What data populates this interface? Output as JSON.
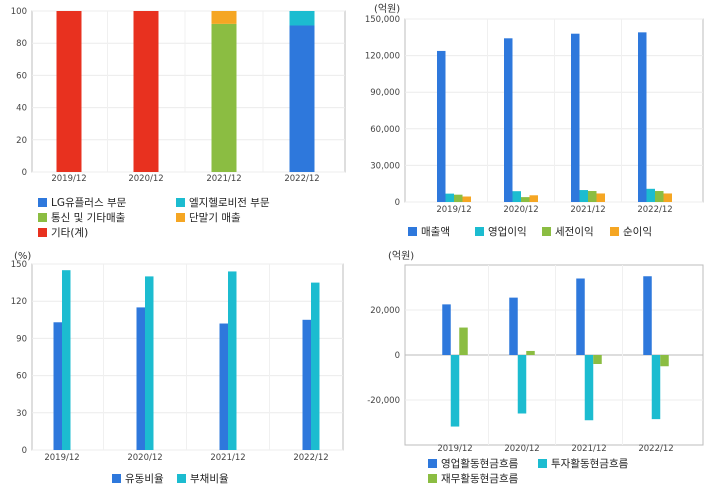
{
  "chart_data": [
    {
      "type": "bar",
      "stacked": true,
      "unit": "",
      "categories": [
        "2019/12",
        "2020/12",
        "2021/12",
        "2022/12"
      ],
      "ylim": [
        0,
        100
      ],
      "yticks": [
        0,
        20,
        40,
        60,
        80,
        100
      ],
      "series": [
        {
          "name": "LG유플러스 부문",
          "color": "#2e78dc",
          "values": [
            0,
            0,
            0,
            91
          ]
        },
        {
          "name": "엘지헬로비전 부문",
          "color": "#1cbcd0",
          "values": [
            0,
            0,
            0,
            9
          ]
        },
        {
          "name": "통신 및 기타매출",
          "color": "#8bbd42",
          "values": [
            0,
            0,
            92,
            0
          ]
        },
        {
          "name": "단말기 매출",
          "color": "#f5a623",
          "values": [
            0,
            0,
            8,
            0
          ]
        },
        {
          "name": "기타(계)",
          "color": "#e8311f",
          "values": [
            100,
            100,
            0,
            0
          ]
        }
      ],
      "grid": true,
      "legend": "bottom"
    },
    {
      "type": "bar",
      "unit": "(억원)",
      "categories": [
        "2019/12",
        "2020/12",
        "2021/12",
        "2022/12"
      ],
      "ylim": [
        0,
        150000
      ],
      "yticks": [
        0,
        30000,
        60000,
        90000,
        120000,
        150000
      ],
      "series": [
        {
          "name": "매출액",
          "color": "#2e78dc",
          "values": [
            123820,
            134176,
            137951,
            139060
          ]
        },
        {
          "name": "영업이익",
          "color": "#1cbcd0",
          "values": [
            6862,
            8862,
            9790,
            10813
          ]
        },
        {
          "name": "세전이익",
          "color": "#8bbd42",
          "values": [
            6000,
            4000,
            9000,
            9000
          ]
        },
        {
          "name": "순이익",
          "color": "#f5a623",
          "values": [
            4500,
            5500,
            7000,
            7000
          ]
        }
      ],
      "grid": true,
      "legend": "bottom"
    },
    {
      "type": "bar",
      "unit": "(%)",
      "categories": [
        "2019/12",
        "2020/12",
        "2021/12",
        "2022/12"
      ],
      "ylim": [
        0,
        150
      ],
      "yticks": [
        0,
        30,
        60,
        90,
        120,
        150
      ],
      "series": [
        {
          "name": "유동비율",
          "color": "#2e78dc",
          "values": [
            103,
            115,
            102,
            105
          ]
        },
        {
          "name": "부채비율",
          "color": "#1cbcd0",
          "values": [
            145,
            140,
            144,
            135
          ]
        }
      ],
      "grid": true,
      "legend": "bottom"
    },
    {
      "type": "bar",
      "unit": "(억원)",
      "categories": [
        "2019/12",
        "2020/12",
        "2021/12",
        "2022/12"
      ],
      "ylim": [
        -40000,
        40000
      ],
      "yticks": [
        -20000,
        0,
        20000
      ],
      "series": [
        {
          "name": "영업활동현금흐름",
          "color": "#2e78dc",
          "values": [
            22500,
            25500,
            34000,
            35000
          ]
        },
        {
          "name": "투자활동현금흐름",
          "color": "#1cbcd0",
          "values": [
            -31800,
            -26000,
            -29000,
            -28500
          ]
        },
        {
          "name": "재무활동현금흐름",
          "color": "#8bbd42",
          "values": [
            12200,
            1800,
            -4000,
            -5000
          ]
        }
      ],
      "grid": true,
      "legend": "bottom"
    }
  ]
}
